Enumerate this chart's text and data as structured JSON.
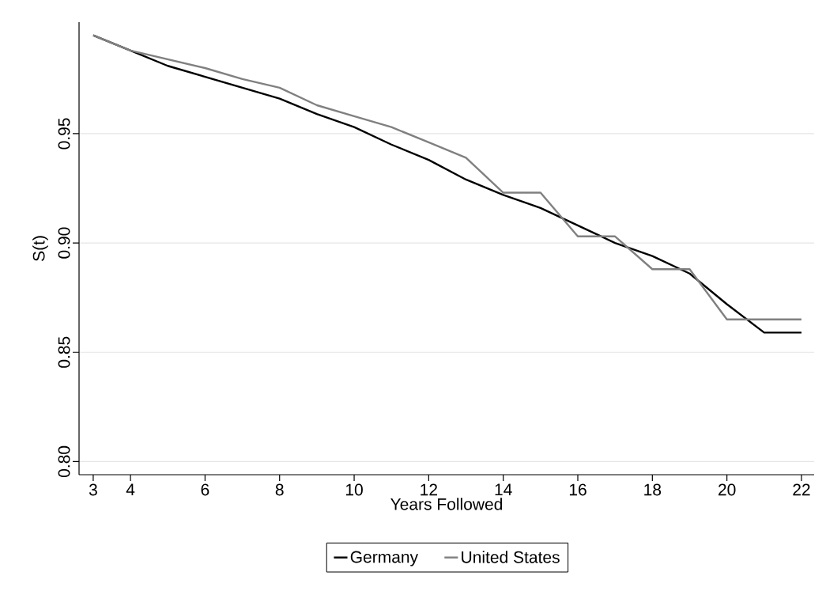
{
  "chart_data": {
    "type": "line",
    "xlabel": "Years Followed",
    "ylabel": "S(t)",
    "x": [
      3,
      4,
      5,
      6,
      7,
      8,
      9,
      10,
      11,
      12,
      13,
      14,
      15,
      16,
      17,
      18,
      19,
      20,
      21,
      22
    ],
    "series": [
      {
        "name": "Germany",
        "color": "#000000",
        "values": [
          0.995,
          0.988,
          0.981,
          0.976,
          0.971,
          0.966,
          0.959,
          0.953,
          0.945,
          0.938,
          0.929,
          0.922,
          0.916,
          0.908,
          0.9,
          0.894,
          0.886,
          0.872,
          0.859,
          0.859
        ]
      },
      {
        "name": "United States",
        "color": "#808080",
        "values": [
          0.995,
          0.988,
          0.984,
          0.98,
          0.975,
          0.971,
          0.963,
          0.958,
          0.953,
          0.946,
          0.939,
          0.923,
          0.923,
          0.903,
          0.903,
          0.888,
          0.888,
          0.865,
          0.865,
          0.865
        ]
      }
    ],
    "xlim": [
      2.62,
      22.34
    ],
    "ylim": [
      0.794,
      1.001
    ],
    "xticks": [
      3,
      4,
      6,
      8,
      10,
      12,
      14,
      16,
      18,
      20,
      22
    ],
    "yticks": [
      {
        "value": 0.8,
        "label": "0.80"
      },
      {
        "value": 0.85,
        "label": "0.85"
      },
      {
        "value": 0.9,
        "label": "0.90"
      },
      {
        "value": 0.95,
        "label": "0.95"
      }
    ],
    "grid": "y",
    "legend": "bottom",
    "marker": "none",
    "line_style": "solid"
  }
}
